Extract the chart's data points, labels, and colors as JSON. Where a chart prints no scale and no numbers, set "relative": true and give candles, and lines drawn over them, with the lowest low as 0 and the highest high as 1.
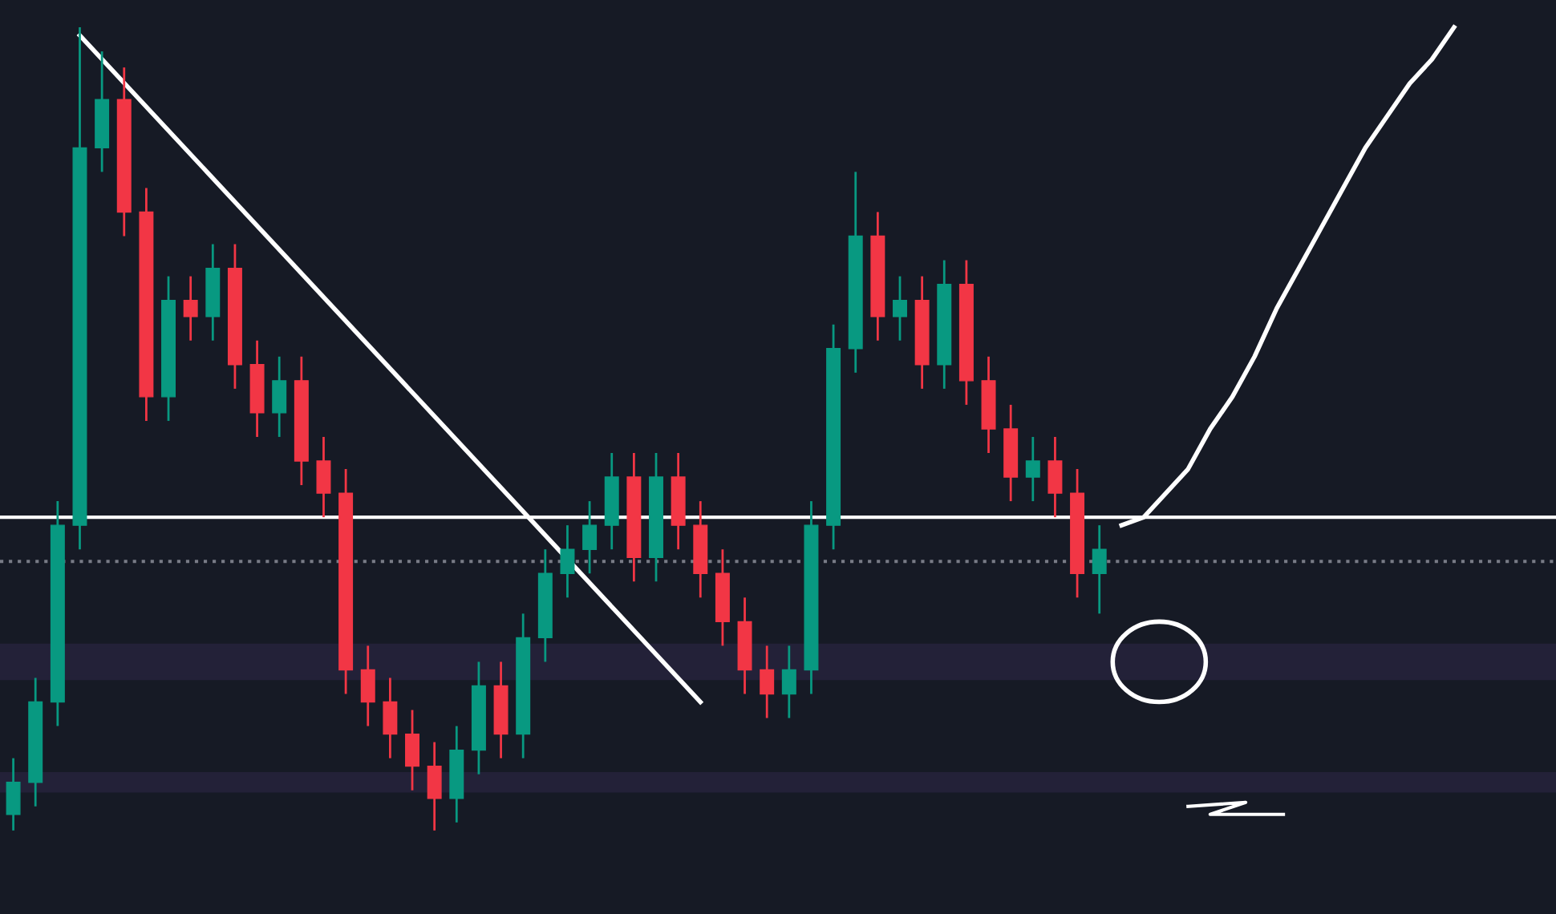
{
  "chart_data": {
    "type": "candlestick",
    "relative": true,
    "categories": [
      null,
      null,
      null,
      null,
      null,
      null,
      null,
      null,
      null,
      null,
      null,
      null,
      null,
      null,
      null,
      null,
      null,
      null,
      null,
      null,
      null,
      null,
      null,
      null,
      null,
      null,
      null,
      null,
      null,
      null,
      null,
      null,
      null,
      null,
      null,
      null,
      null,
      null,
      null,
      null,
      null,
      null,
      null,
      null,
      null,
      null,
      null,
      null,
      null,
      null,
      null,
      null,
      null,
      null,
      null,
      null,
      null,
      null,
      null,
      null,
      null,
      null,
      null,
      null,
      null,
      null,
      null,
      null,
      null,
      null
    ],
    "ohlc": [
      [
        0.02,
        0.09,
        0.0,
        0.06
      ],
      [
        0.06,
        0.19,
        0.03,
        0.16
      ],
      [
        0.16,
        0.41,
        0.13,
        0.38
      ],
      [
        0.38,
        1.0,
        0.35,
        0.85
      ],
      [
        0.85,
        0.97,
        0.82,
        0.91
      ],
      [
        0.91,
        0.95,
        0.74,
        0.77
      ],
      [
        0.77,
        0.8,
        0.51,
        0.54
      ],
      [
        0.54,
        0.69,
        0.51,
        0.66
      ],
      [
        0.66,
        0.69,
        0.61,
        0.64
      ],
      [
        0.64,
        0.73,
        0.61,
        0.7
      ],
      [
        0.7,
        0.73,
        0.55,
        0.58
      ],
      [
        0.58,
        0.61,
        0.49,
        0.52
      ],
      [
        0.52,
        0.59,
        0.49,
        0.56
      ],
      [
        0.56,
        0.59,
        0.43,
        0.46
      ],
      [
        0.46,
        0.49,
        0.39,
        0.42
      ],
      [
        0.42,
        0.45,
        0.17,
        0.2
      ],
      [
        0.2,
        0.23,
        0.13,
        0.16
      ],
      [
        0.16,
        0.19,
        0.09,
        0.12
      ],
      [
        0.12,
        0.15,
        0.05,
        0.08
      ],
      [
        0.08,
        0.11,
        0.0,
        0.04
      ],
      [
        0.04,
        0.13,
        0.01,
        0.1
      ],
      [
        0.1,
        0.21,
        0.07,
        0.18
      ],
      [
        0.18,
        0.21,
        0.09,
        0.12
      ],
      [
        0.12,
        0.27,
        0.09,
        0.24
      ],
      [
        0.24,
        0.35,
        0.21,
        0.32
      ],
      [
        0.32,
        0.38,
        0.29,
        0.35
      ],
      [
        0.35,
        0.41,
        0.32,
        0.38
      ],
      [
        0.38,
        0.47,
        0.35,
        0.44
      ],
      [
        0.44,
        0.47,
        0.31,
        0.34
      ],
      [
        0.34,
        0.47,
        0.31,
        0.44
      ],
      [
        0.44,
        0.47,
        0.35,
        0.38
      ],
      [
        0.38,
        0.41,
        0.29,
        0.32
      ],
      [
        0.32,
        0.35,
        0.23,
        0.26
      ],
      [
        0.26,
        0.29,
        0.17,
        0.2
      ],
      [
        0.2,
        0.23,
        0.14,
        0.17
      ],
      [
        0.17,
        0.23,
        0.14,
        0.2
      ],
      [
        0.2,
        0.41,
        0.17,
        0.38
      ],
      [
        0.38,
        0.63,
        0.35,
        0.6
      ],
      [
        0.6,
        0.82,
        0.57,
        0.74
      ],
      [
        0.74,
        0.77,
        0.61,
        0.64
      ],
      [
        0.64,
        0.69,
        0.61,
        0.66
      ],
      [
        0.66,
        0.69,
        0.55,
        0.58
      ],
      [
        0.58,
        0.71,
        0.55,
        0.68
      ],
      [
        0.68,
        0.71,
        0.53,
        0.56
      ],
      [
        0.56,
        0.59,
        0.47,
        0.5
      ],
      [
        0.5,
        0.53,
        0.41,
        0.44
      ],
      [
        0.44,
        0.49,
        0.41,
        0.46
      ],
      [
        0.46,
        0.49,
        0.39,
        0.42
      ],
      [
        0.42,
        0.45,
        0.29,
        0.32
      ],
      [
        0.32,
        0.38,
        0.27,
        0.35
      ],
      null,
      null,
      null,
      null,
      null,
      null,
      null,
      null,
      null,
      null,
      null,
      null,
      null,
      null,
      null,
      null,
      null,
      null,
      null,
      null
    ],
    "colors": [
      "#089981",
      "#089981",
      "#089981",
      "#089981",
      "#089981",
      "#f23645",
      "#f23645",
      "#089981",
      "#f23645",
      "#089981",
      "#f23645",
      "#f23645",
      "#089981",
      "#f23645",
      "#f23645",
      "#f23645",
      "#f23645",
      "#f23645",
      "#f23645",
      "#f23645",
      "#089981",
      "#089981",
      "#f23645",
      "#089981",
      "#089981",
      "#089981",
      "#089981",
      "#089981",
      "#f23645",
      "#089981",
      "#f23645",
      "#f23645",
      "#f23645",
      "#f23645",
      "#f23645",
      "#089981",
      "#089981",
      "#089981",
      "#089981",
      "#f23645",
      "#089981",
      "#f23645",
      "#089981",
      "#f23645",
      "#f23645",
      "#f23645",
      "#089981",
      "#f23645",
      "#f23645",
      "#089981",
      null,
      null,
      null,
      null,
      null,
      null,
      null,
      null,
      null,
      null,
      null,
      null,
      null,
      null,
      null,
      null,
      null,
      null,
      null,
      null
    ],
    "series": [
      {
        "type": "line",
        "color": "#ffffff",
        "values": [
          null,
          null,
          null,
          0.99,
          null,
          null,
          null,
          null,
          null,
          null,
          null,
          null,
          null,
          null,
          null,
          null,
          null,
          null,
          null,
          null,
          null,
          null,
          null,
          null,
          null,
          null,
          null,
          null,
          null,
          null,
          null,
          0.16,
          null,
          null,
          null,
          null,
          null,
          null,
          null,
          null,
          null,
          null,
          null,
          null,
          null,
          null,
          null,
          null,
          null,
          null,
          null,
          null,
          null,
          null,
          null,
          null,
          null,
          null,
          null,
          null,
          null,
          null,
          null,
          null,
          null,
          null,
          null,
          null,
          null,
          null
        ]
      },
      {
        "type": "line",
        "color": "#ffffff",
        "values": [
          null,
          null,
          null,
          null,
          null,
          null,
          null,
          null,
          null,
          null,
          null,
          null,
          null,
          null,
          null,
          null,
          null,
          null,
          null,
          null,
          null,
          null,
          null,
          null,
          null,
          null,
          null,
          null,
          null,
          null,
          null,
          null,
          null,
          null,
          null,
          null,
          null,
          null,
          null,
          null,
          null,
          null,
          null,
          null,
          null,
          null,
          null,
          null,
          null,
          null,
          0.38,
          0.39,
          0.42,
          0.45,
          0.5,
          0.54,
          0.59,
          0.65,
          0.7,
          0.75,
          0.8,
          0.85,
          0.89,
          0.93,
          0.96,
          1.0,
          null,
          null,
          null,
          null
        ]
      }
    ],
    "ref_lines": [
      {
        "axis": "y",
        "value": 0.39,
        "color": "#ffffff",
        "line_style": "solid"
      },
      {
        "axis": "y",
        "value": 0.335,
        "color": "#787b86",
        "line_style": "dotted"
      }
    ],
    "bands": [
      {
        "axis": "y",
        "from": 0.19,
        "to": 0.23,
        "color": "#7e57c2"
      },
      {
        "axis": "y",
        "from": 0.05,
        "to": 0.07,
        "color": "#7e57c2"
      }
    ]
  }
}
